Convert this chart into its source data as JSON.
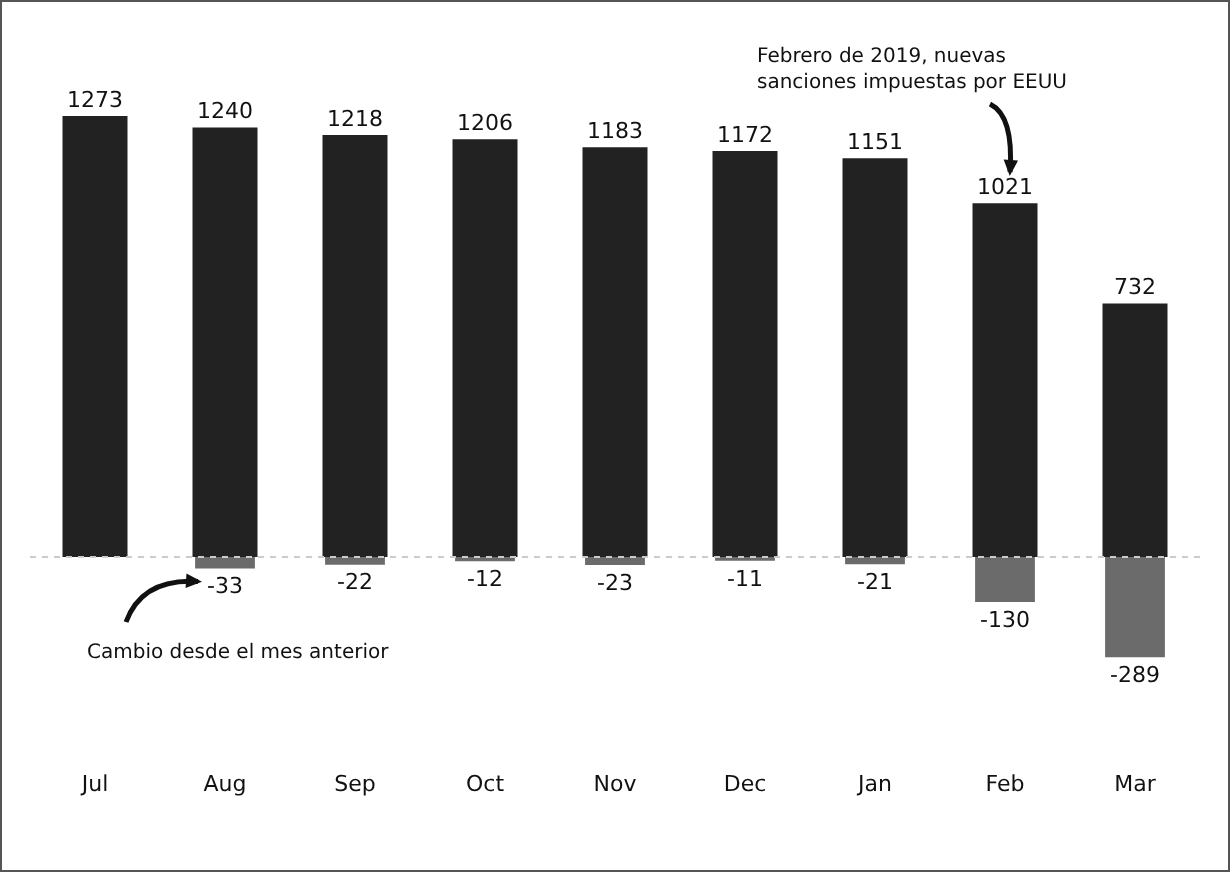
{
  "chart_data": {
    "type": "bar",
    "categories": [
      "Jul",
      "Aug",
      "Sep",
      "Oct",
      "Nov",
      "Dec",
      "Jan",
      "Feb",
      "Mar"
    ],
    "series": [
      {
        "color": "#222222",
        "values": [
          1273,
          1240,
          1218,
          1206,
          1183,
          1172,
          1151,
          1021,
          732
        ]
      },
      {
        "color": "#6b6b6b",
        "values": [
          null,
          -33,
          -22,
          -12,
          -23,
          -11,
          -21,
          -130,
          -289
        ]
      }
    ],
    "data_labels": true,
    "legend": false,
    "grid": false,
    "ref_lines": [
      {
        "axis": "y",
        "value": 0,
        "color": "#cccccc",
        "line_style": "dashed"
      }
    ],
    "annotations": [
      "Febrero de 2019, nuevas sanciones impuestas por EEUU",
      "Cambio desde el mes anterior"
    ]
  }
}
